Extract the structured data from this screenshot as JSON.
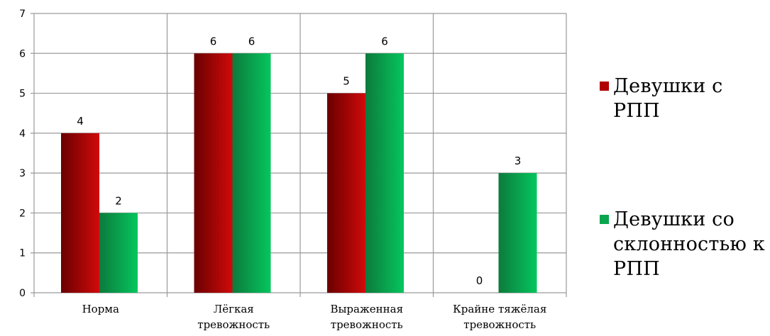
{
  "colors": {
    "series_0_dark": "#6a0000",
    "series_0_light": "#d00a0a",
    "series_1_dark": "#0c7a3c",
    "series_1_light": "#05c65e",
    "grid": "#9a9a9a",
    "axis_text": "#000000"
  },
  "legend": {
    "items": [
      {
        "label": "Девушки с РПП",
        "swatch_color": "#b00000"
      },
      {
        "label": "Девушки со склонностью к РПП",
        "swatch_color": "#0aa54f"
      }
    ]
  },
  "chart_data": {
    "type": "bar",
    "title": "",
    "xlabel": "",
    "ylabel": "",
    "categories": [
      "Норма",
      "Лёгкая тревожность",
      "Выраженная тревожность",
      "Крайне тяжёлая тревожность"
    ],
    "category_lines": [
      [
        "Норма"
      ],
      [
        "Лёгкая",
        "тревожность"
      ],
      [
        "Выраженная",
        "тревожность"
      ],
      [
        "Крайне тяжёлая",
        "тревожность"
      ]
    ],
    "series": [
      {
        "name": "Девушки с РПП",
        "values": [
          4,
          6,
          5,
          0
        ]
      },
      {
        "name": "Девушки со склонностью к РПП",
        "values": [
          2,
          6,
          6,
          3
        ]
      }
    ],
    "data_labels": [
      [
        "4",
        "6",
        "5",
        "0"
      ],
      [
        "2",
        "6",
        "6",
        "3"
      ]
    ],
    "y_ticks": [
      0,
      1,
      2,
      3,
      4,
      5,
      6,
      7
    ],
    "ylim": [
      0,
      7
    ],
    "grid": true,
    "legend_position": "right"
  }
}
